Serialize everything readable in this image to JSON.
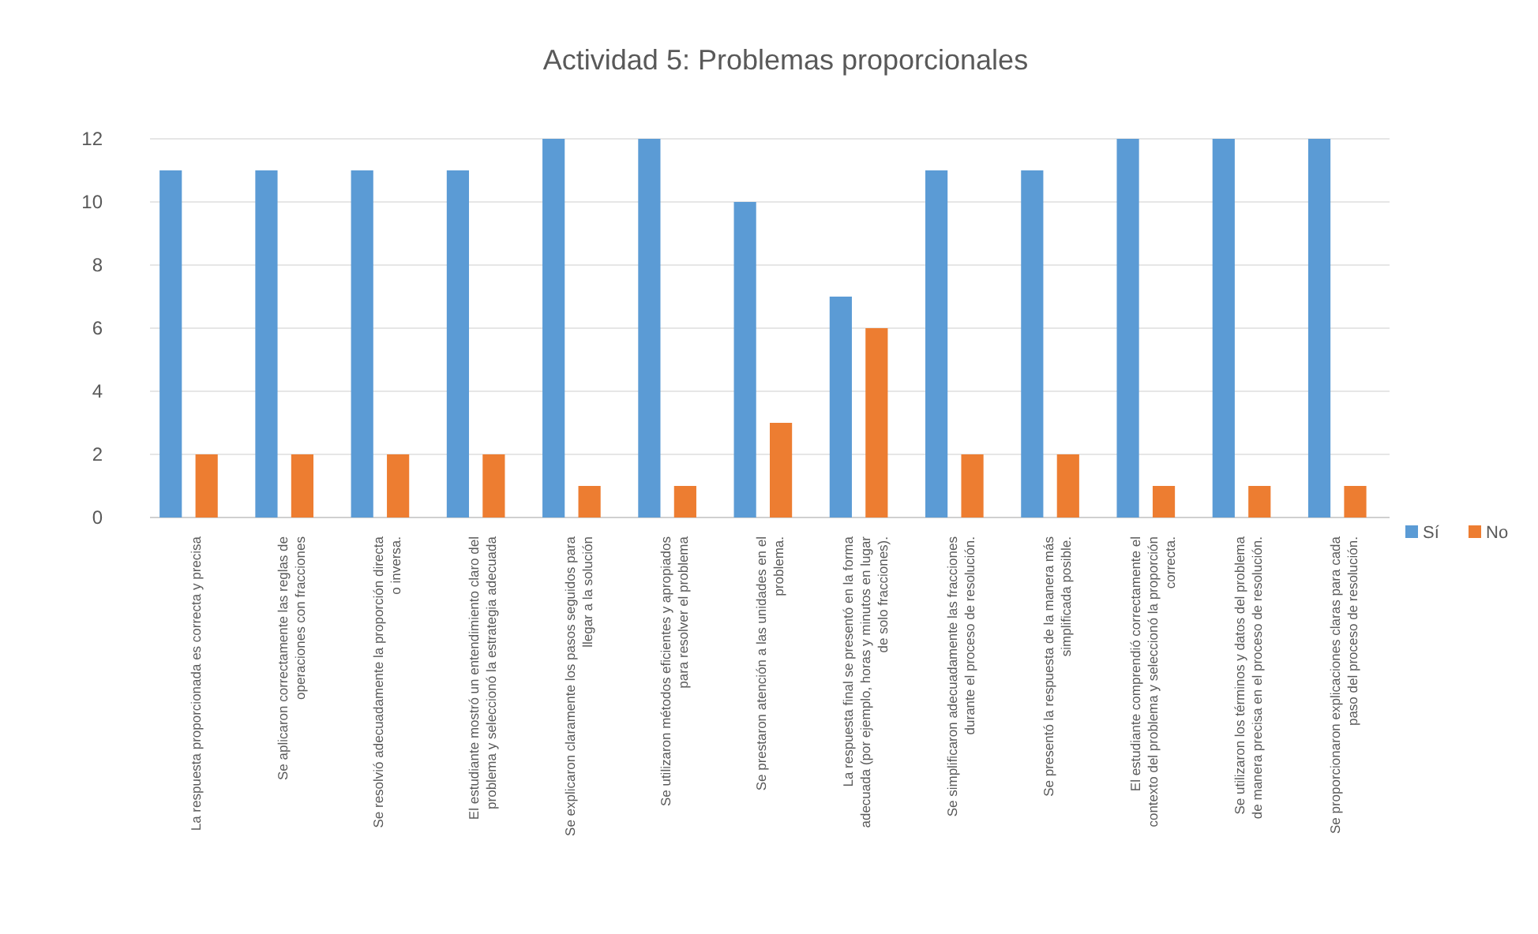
{
  "chart_data": {
    "type": "bar",
    "title": "Actividad 5: Problemas proporcionales",
    "categories": [
      "La respuesta proporcionada es correcta y precisa",
      "Se aplicaron correctamente las reglas de operaciones con fracciones",
      "Se resolvió adecuadamente la proporción directa o inversa.",
      "El estudiante mostró un entendimiento claro del problema y seleccionó la estrategia adecuada",
      "Se explicaron claramente los pasos seguidos para llegar a la solución",
      "Se utilizaron métodos eficientes y apropiados para resolver el problema",
      "Se prestaron atención a las unidades en el problema.",
      "La respuesta final se presentó en la forma adecuada (por ejemplo, horas y minutos en lugar de solo fracciones).",
      "Se simplificaron adecuadamente las fracciones durante el proceso de resolución.",
      "Se presentó la respuesta de la manera más simplificada posible.",
      "El estudiante comprendió correctamente el contexto del problema y seleccionó la proporción correcta.",
      "Se utilizaron los términos y datos del problema de manera precisa en el proceso de resolución.",
      "Se proporcionaron explicaciones claras para cada paso del proceso de resolución."
    ],
    "series": [
      {
        "name": "Sí",
        "color": "#5b9bd5",
        "values": [
          11,
          11,
          11,
          11,
          12,
          12,
          10,
          7,
          11,
          11,
          12,
          12,
          12
        ]
      },
      {
        "name": "No",
        "color": "#ed7d31",
        "values": [
          2,
          2,
          2,
          2,
          1,
          1,
          3,
          6,
          2,
          2,
          1,
          1,
          1
        ]
      }
    ],
    "ylim": [
      0,
      12
    ],
    "yticks": [
      0,
      2,
      4,
      6,
      8,
      10,
      12
    ],
    "grid": "y",
    "legend": "right"
  }
}
